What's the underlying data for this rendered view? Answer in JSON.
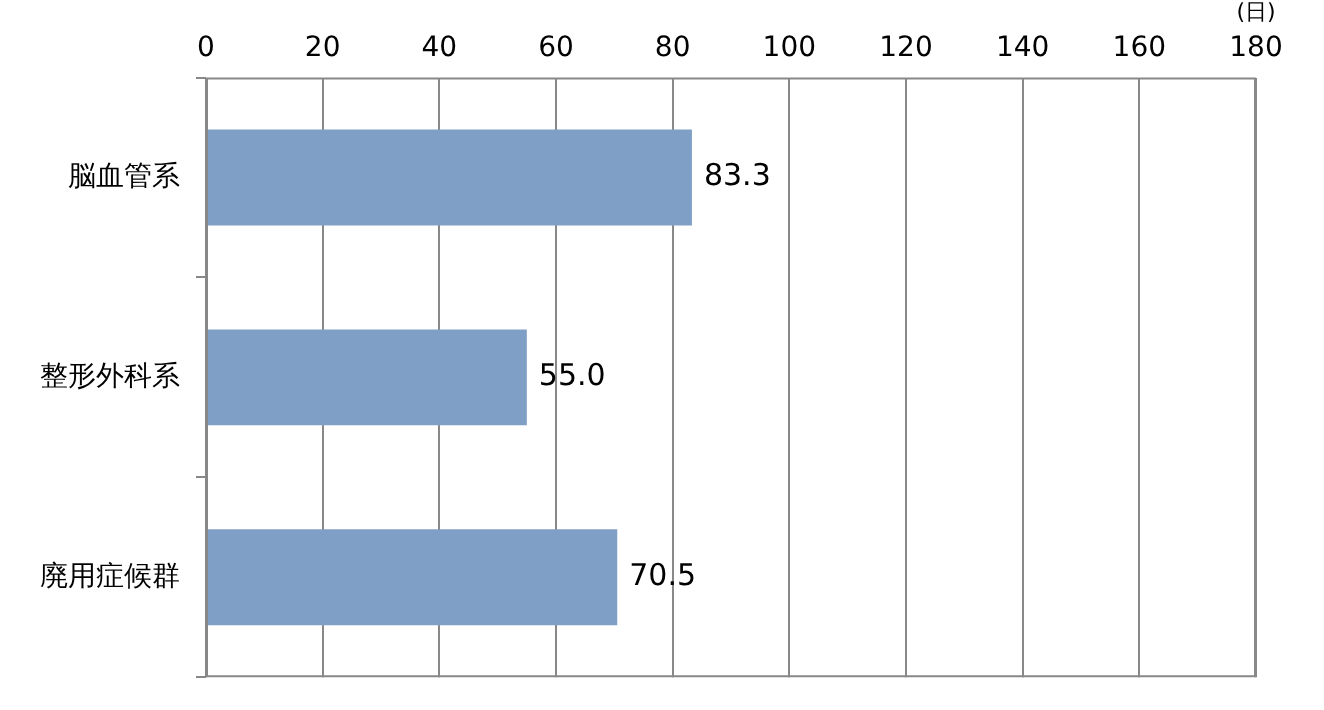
{
  "chart_data": {
    "type": "bar",
    "orientation": "horizontal",
    "xlabel": "(日)",
    "categories": [
      "脳血管系",
      "整形外科系",
      "廃用症候群"
    ],
    "values": [
      83.3,
      55.0,
      70.5
    ],
    "value_labels": [
      "83.3",
      "55.0",
      "70.5"
    ],
    "color": "#7f9fc6",
    "xlim": [
      0,
      180
    ],
    "xticks": [
      0,
      20,
      40,
      60,
      80,
      100,
      120,
      140,
      160,
      180
    ],
    "grid": "x",
    "legend": false
  }
}
